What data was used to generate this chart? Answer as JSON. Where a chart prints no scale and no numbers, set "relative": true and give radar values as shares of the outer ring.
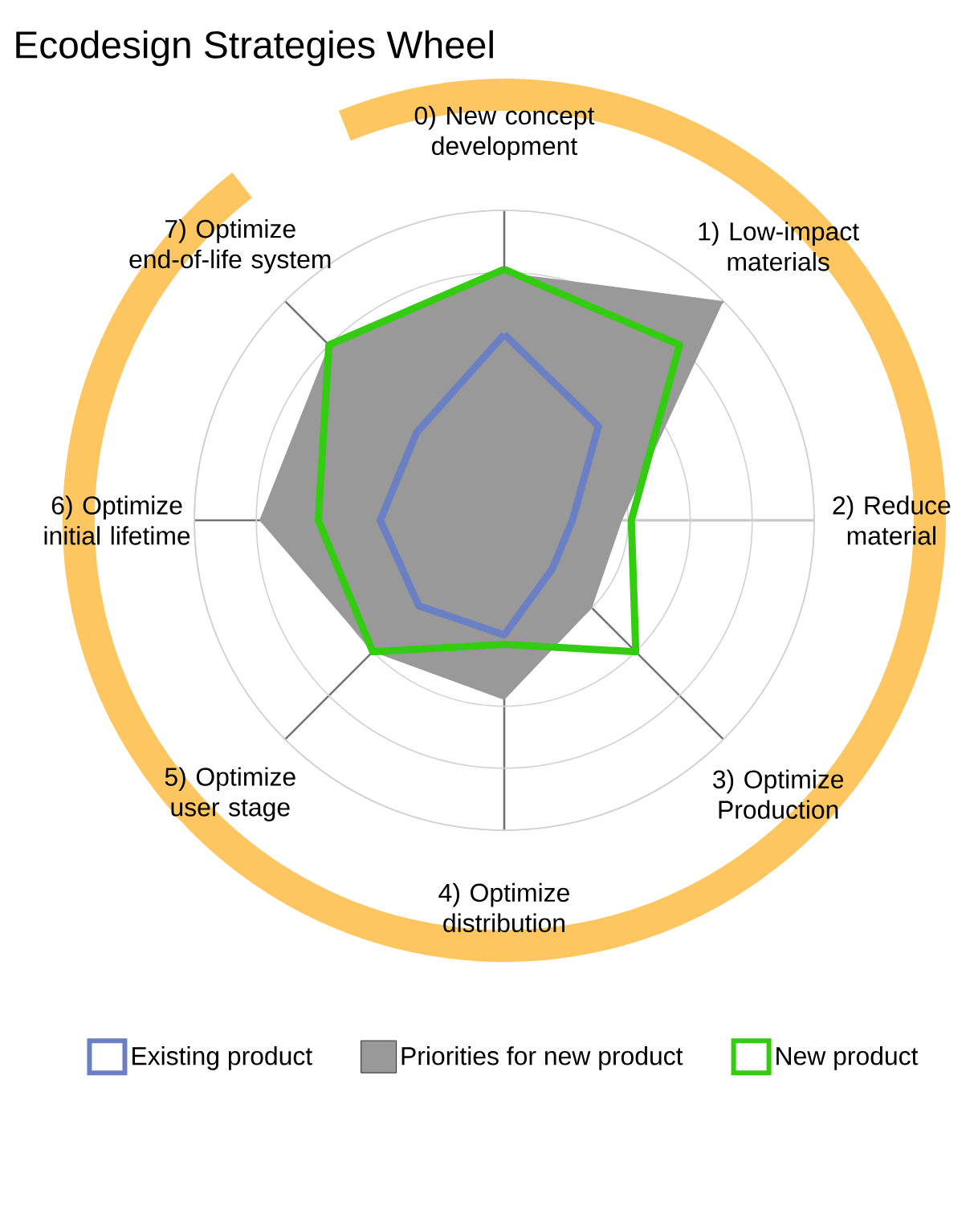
{
  "chart_data": {
    "type": "radar",
    "title": "Ecodesign Strategies Wheel",
    "categories": [
      "0) New concept development",
      "1) Low-impact materials",
      "2) Reduce material",
      "3) Optimize Production",
      "4) Optimize distribution",
      "5) Optimize user stage",
      "6) Optimize initial lifetime",
      "7) Optimize end-of-life system"
    ],
    "relative": true,
    "grid": true,
    "legend": "bottom",
    "series": [
      {
        "name": "Existing product",
        "color": "#6b7fc4",
        "values": [
          0.6,
          0.43,
          0.22,
          0.22,
          0.37,
          0.39,
          0.4,
          0.4
        ]
      },
      {
        "name": "Priorities for new product",
        "type": "area",
        "color": "#999999",
        "values": [
          0.8,
          1.0,
          0.38,
          0.4,
          0.58,
          0.6,
          0.79,
          0.8
        ]
      },
      {
        "name": "New product",
        "color": "#33cc11",
        "values": [
          0.81,
          0.8,
          0.41,
          0.6,
          0.4,
          0.6,
          0.6,
          0.8
        ]
      }
    ]
  }
}
